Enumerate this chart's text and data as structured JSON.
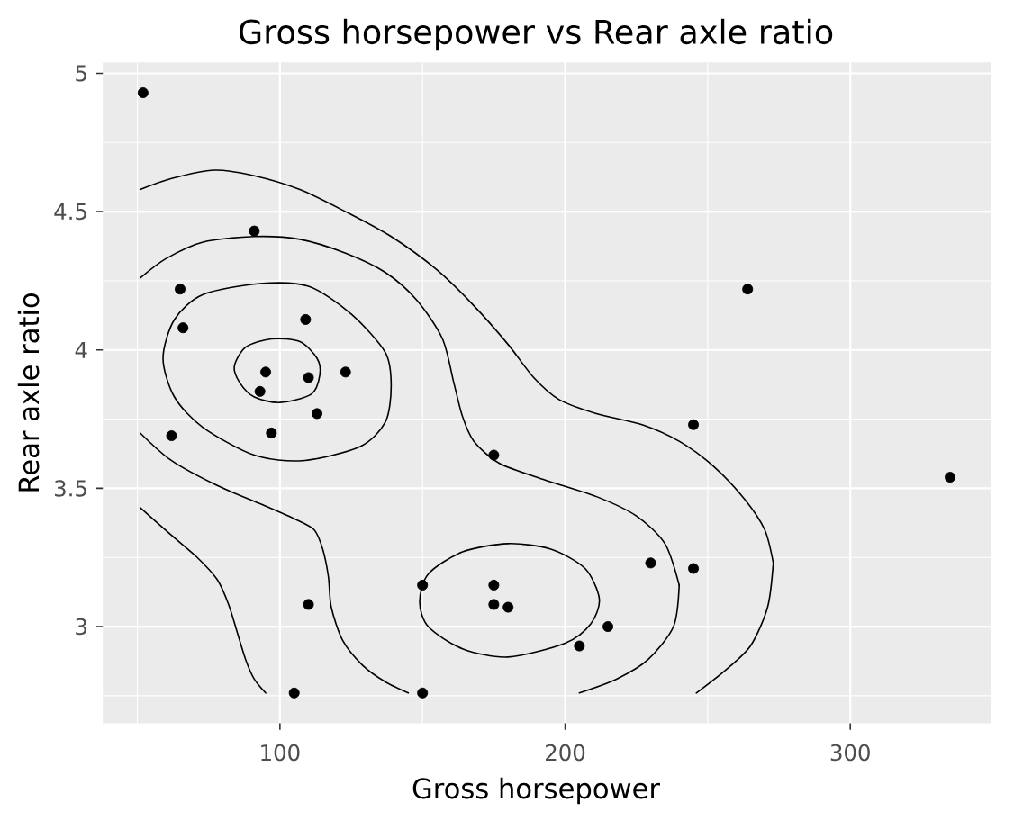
{
  "chart_data": {
    "type": "scatter",
    "title": "Gross horsepower vs Rear axle ratio",
    "xlabel": "Gross horsepower",
    "ylabel": "Rear axle ratio",
    "xlim": [
      37.9,
      349.2
    ],
    "ylim": [
      2.65,
      5.04
    ],
    "xticks": [
      100,
      200,
      300
    ],
    "yticks": [
      3,
      3.5,
      4,
      4.5,
      5
    ],
    "grid": true,
    "marker": "circle",
    "series": [
      {
        "color": "#000000",
        "x": [
          110,
          93,
          110,
          175,
          105,
          245,
          62,
          95,
          123,
          180,
          205,
          215,
          230,
          66,
          52,
          65,
          97,
          150,
          150,
          245,
          175,
          91,
          113,
          264,
          175,
          335,
          109
        ],
        "values": [
          3.9,
          3.85,
          3.08,
          3.15,
          2.76,
          3.21,
          3.69,
          3.92,
          3.92,
          3.07,
          2.93,
          3.0,
          3.23,
          4.08,
          4.93,
          4.22,
          3.7,
          2.76,
          3.15,
          3.73,
          3.08,
          4.43,
          3.77,
          4.22,
          3.62,
          3.54,
          4.11
        ]
      },
      {
        "type": "line",
        "marker": "none",
        "color": "#000000",
        "x": [
          51,
          62,
          77,
          91,
          107,
          123,
          139,
          155,
          168,
          180,
          189,
          198,
          211,
          227,
          240,
          252,
          263,
          270,
          273
        ],
        "values": [
          4.58,
          4.62,
          4.65,
          4.63,
          4.58,
          4.5,
          4.41,
          4.29,
          4.16,
          4.02,
          3.9,
          3.82,
          3.77,
          3.73,
          3.67,
          3.58,
          3.46,
          3.35,
          3.23
        ]
      },
      {
        "type": "line",
        "marker": "none",
        "color": "#000000",
        "x": [
          246,
          256,
          265,
          271,
          273
        ],
        "values": [
          2.76,
          2.84,
          2.93,
          3.07,
          3.23
        ]
      },
      {
        "type": "line",
        "marker": "none",
        "color": "#000000",
        "x": [
          51,
          60,
          73,
          91,
          107,
          123,
          137,
          148,
          157,
          161,
          164,
          168,
          177,
          193,
          211,
          225,
          235,
          240
        ],
        "values": [
          4.26,
          4.33,
          4.39,
          4.41,
          4.4,
          4.35,
          4.28,
          4.18,
          4.04,
          3.88,
          3.76,
          3.67,
          3.59,
          3.53,
          3.47,
          3.4,
          3.3,
          3.15
        ]
      },
      {
        "type": "line",
        "marker": "none",
        "color": "#000000",
        "x": [
          205,
          218,
          229,
          238,
          240
        ],
        "values": [
          2.76,
          2.81,
          2.88,
          3.0,
          3.15
        ]
      },
      {
        "type": "line",
        "marker": "none",
        "color": "#000000",
        "x": [
          51,
          62,
          78,
          94,
          105,
          112,
          115,
          117,
          118,
          122,
          129,
          137,
          145
        ],
        "values": [
          3.7,
          3.6,
          3.51,
          3.44,
          3.39,
          3.35,
          3.28,
          3.18,
          3.07,
          2.95,
          2.86,
          2.8,
          2.76
        ]
      },
      {
        "type": "line",
        "marker": "none",
        "color": "#000000",
        "x": [
          51,
          62,
          71,
          78,
          82,
          85,
          88,
          91,
          95
        ],
        "values": [
          3.43,
          3.33,
          3.25,
          3.17,
          3.08,
          2.98,
          2.88,
          2.81,
          2.76
        ]
      }
    ]
  }
}
